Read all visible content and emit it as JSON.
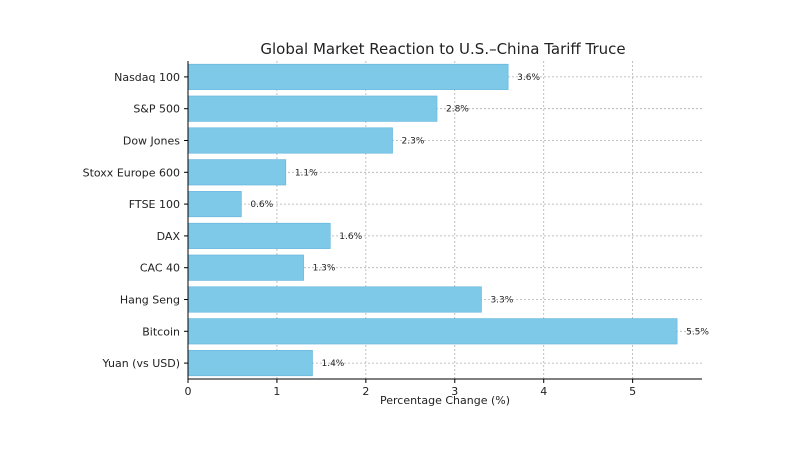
{
  "chart_data": {
    "type": "bar",
    "orientation": "horizontal",
    "title": "Global Market Reaction to U.S.–China Tariff Truce",
    "xlabel": "Percentage Change (%)",
    "ylabel": "",
    "categories": [
      "Nasdaq 100",
      "S&P 500",
      "Dow Jones",
      "Stoxx Europe 600",
      "FTSE 100",
      "DAX",
      "CAC 40",
      "Hang Seng",
      "Bitcoin",
      "Yuan (vs USD)"
    ],
    "values": [
      3.6,
      2.8,
      2.3,
      1.1,
      0.6,
      1.6,
      1.3,
      3.3,
      5.5,
      1.4
    ],
    "data_labels": [
      "3.6%",
      "2.8%",
      "2.3%",
      "1.1%",
      "0.6%",
      "1.6%",
      "1.3%",
      "3.3%",
      "5.5%",
      "1.4%"
    ],
    "xlim": [
      0,
      5.78
    ],
    "xticks": [
      0,
      1,
      2,
      3,
      4,
      5
    ],
    "xtick_labels": [
      "0",
      "1",
      "2",
      "3",
      "4",
      "5"
    ],
    "grid": true,
    "legend": "none",
    "colors": {
      "bar_fill": "#7ec8e8",
      "bar_edge": "#5fb3dc",
      "grid": "#b0b0b0",
      "axis": "#000000",
      "text": "#222222"
    }
  }
}
